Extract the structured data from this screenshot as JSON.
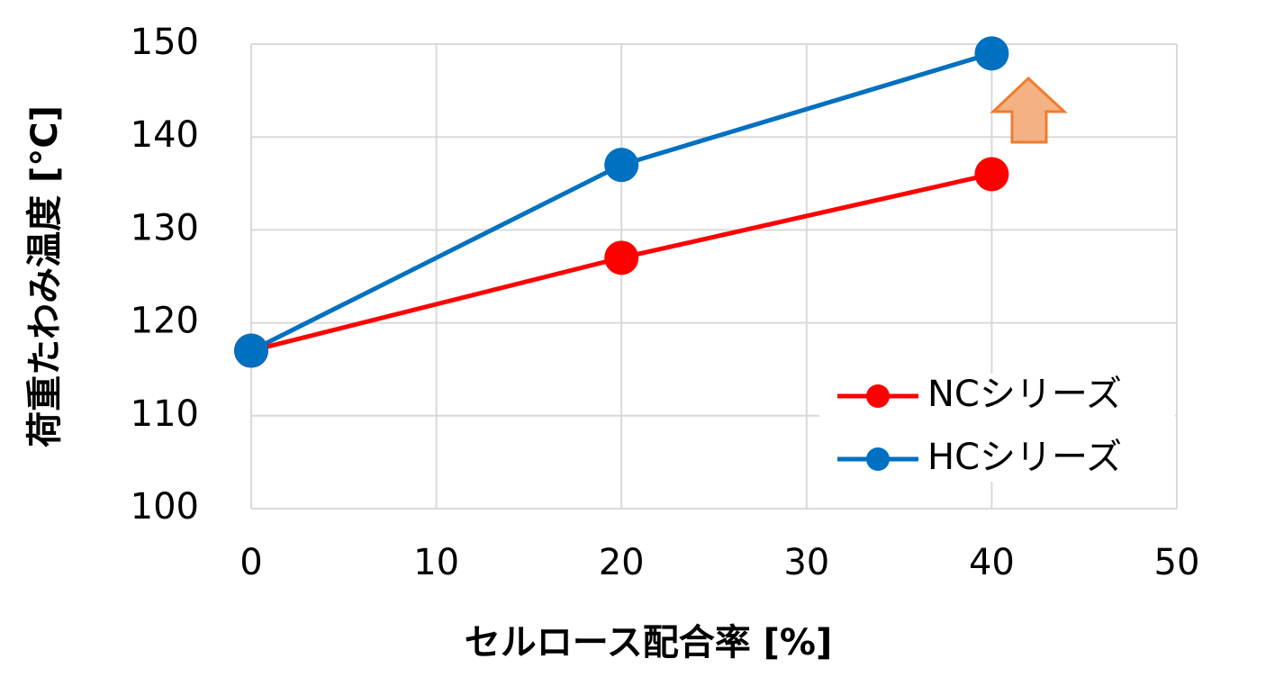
{
  "chart_data": {
    "type": "line",
    "xlabel": "セルロース配合率 [%]",
    "ylabel": "荷重たわみ温度 [°C]",
    "x": [
      0,
      20,
      40
    ],
    "series": [
      {
        "name": "NCシリーズ",
        "color": "#ff0000",
        "values": [
          117,
          127,
          136
        ]
      },
      {
        "name": "HCシリーズ",
        "color": "#0070c0",
        "values": [
          117,
          137,
          149
        ]
      }
    ],
    "xlim": [
      0,
      50
    ],
    "xticks": [
      0,
      10,
      20,
      30,
      40,
      50
    ],
    "ylim": [
      100,
      150
    ],
    "yticks": [
      100,
      110,
      120,
      130,
      140,
      150
    ],
    "grid": true,
    "legend": "lower right"
  }
}
